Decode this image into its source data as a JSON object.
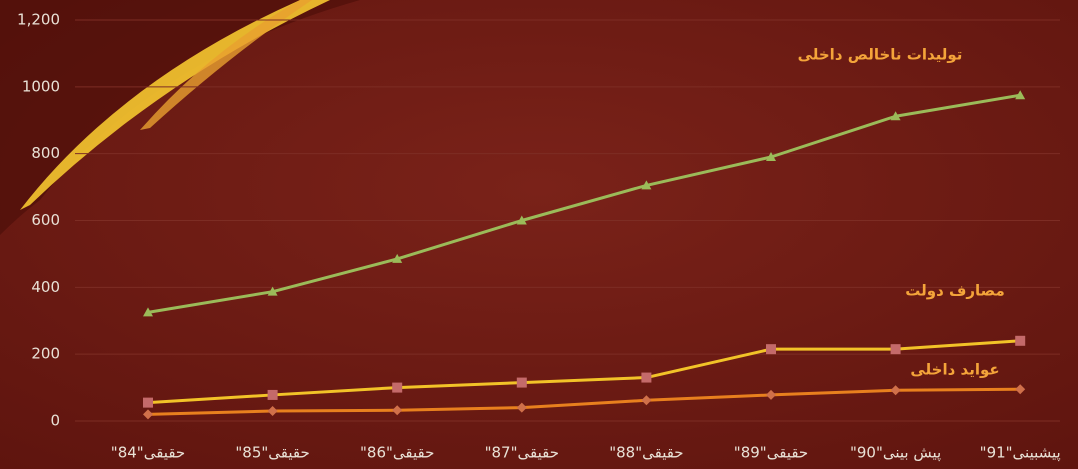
{
  "chart_data": {
    "type": "line",
    "categories": [
      "\"حقیقی\"84",
      "\"حقیقی\"85",
      "\"حقیقی\"86",
      "\"حقیقی\"87",
      "\"حقیقی\"88",
      "\"حقیقی\"89",
      "\"پیش بینی\"90",
      "\"پیشبینی\"91"
    ],
    "series": [
      {
        "name": "تولیدات ناخالص داخلی",
        "color": "#9bbb59",
        "marker": "triangle",
        "marker_color": "#9bbb59",
        "values": [
          325,
          387,
          485,
          600,
          705,
          790,
          912,
          975
        ]
      },
      {
        "name": "مصارف دولت",
        "color": "#f2c328",
        "marker": "square",
        "marker_color": "#c46a6a",
        "values": [
          55,
          78,
          100,
          115,
          130,
          215,
          215,
          240
        ]
      },
      {
        "name": "عواید داخلی",
        "color": "#e8801e",
        "marker": "diamond",
        "marker_color": "#d0704a",
        "values": [
          20,
          30,
          32,
          40,
          62,
          78,
          92,
          95
        ]
      }
    ],
    "ylim": [
      0,
      1200
    ],
    "yticks": [
      0,
      200,
      400,
      600,
      800,
      1000,
      {
        "value": 1200,
        "label": "1,200"
      }
    ],
    "grid": true
  }
}
